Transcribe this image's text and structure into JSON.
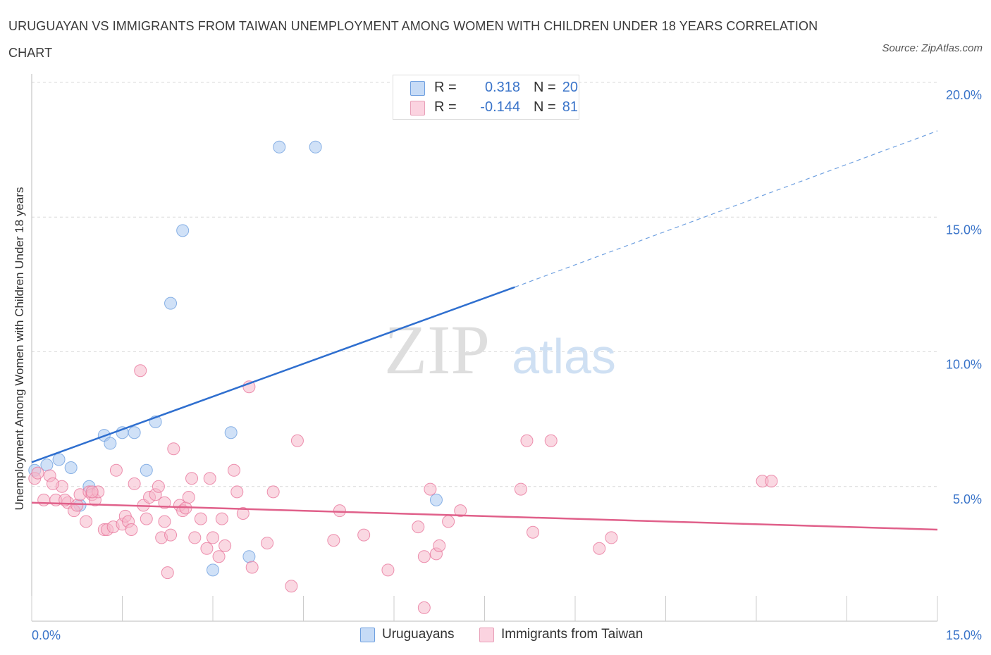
{
  "title": "URUGUAYAN VS IMMIGRANTS FROM TAIWAN UNEMPLOYMENT AMONG WOMEN WITH CHILDREN UNDER 18 YEARS CORRELATION CHART",
  "source": "Source: ZipAtlas.com",
  "watermark": {
    "zip": "ZIP",
    "atlas": "atlas"
  },
  "legend_top": [
    {
      "r_label": "R =",
      "r_value": "0.318",
      "n_label": "N =",
      "n_value": "20",
      "color": "#a9c8f0"
    },
    {
      "r_label": "R =",
      "r_value": "-0.144",
      "n_label": "N =",
      "n_value": "81",
      "color": "#f5b8cb"
    }
  ],
  "legend_bottom": [
    {
      "label": "Uruguayans",
      "color": "#a9c8f0"
    },
    {
      "label": "Immigrants from Taiwan",
      "color": "#f5b8cb"
    }
  ],
  "chart_data": {
    "type": "scatter",
    "title": "URUGUAYAN VS IMMIGRANTS FROM TAIWAN UNEMPLOYMENT AMONG WOMEN WITH CHILDREN UNDER 18 YEARS CORRELATION CHART",
    "xlabel": "",
    "ylabel": "Unemployment Among Women with Children Under 18 years",
    "xlim": [
      0,
      15
    ],
    "ylim": [
      0,
      20
    ],
    "x_tick_labels": [
      "0.0%",
      "15.0%"
    ],
    "y_tick_labels": [
      "5.0%",
      "10.0%",
      "15.0%",
      "20.0%"
    ],
    "y_ticks": [
      5,
      10,
      15,
      20
    ],
    "grid": true,
    "legend_position": "top-center and bottom",
    "series": [
      {
        "name": "Uruguayans",
        "color": "#6fa0e0",
        "fill": "#a9c8f0",
        "points": [
          [
            0.05,
            5.6
          ],
          [
            0.25,
            5.8
          ],
          [
            0.45,
            6.0
          ],
          [
            0.65,
            5.7
          ],
          [
            0.95,
            5.0
          ],
          [
            0.8,
            4.3
          ],
          [
            1.2,
            6.9
          ],
          [
            1.3,
            6.6
          ],
          [
            1.5,
            7.0
          ],
          [
            1.7,
            7.0
          ],
          [
            1.9,
            5.6
          ],
          [
            2.05,
            7.4
          ],
          [
            2.3,
            11.8
          ],
          [
            2.5,
            14.5
          ],
          [
            3.0,
            1.9
          ],
          [
            3.3,
            7.0
          ],
          [
            3.6,
            2.4
          ],
          [
            4.1,
            17.6
          ],
          [
            4.7,
            17.6
          ],
          [
            6.7,
            4.5
          ]
        ],
        "trend": {
          "x0": 0,
          "y0": 5.9,
          "x1": 8.0,
          "y1": 12.4,
          "dashed_to_x": 15,
          "dashed_to_y": 18.2
        }
      },
      {
        "name": "Immigrants from Taiwan",
        "color": "#e8779c",
        "fill": "#f5b8cb",
        "points": [
          [
            0.05,
            5.3
          ],
          [
            0.1,
            5.5
          ],
          [
            0.2,
            4.5
          ],
          [
            0.3,
            5.4
          ],
          [
            0.4,
            4.5
          ],
          [
            0.5,
            5.0
          ],
          [
            0.6,
            4.4
          ],
          [
            0.7,
            4.1
          ],
          [
            0.75,
            4.3
          ],
          [
            0.8,
            4.7
          ],
          [
            0.9,
            3.7
          ],
          [
            0.95,
            4.8
          ],
          [
            1.0,
            4.7
          ],
          [
            1.05,
            4.5
          ],
          [
            1.1,
            4.8
          ],
          [
            1.2,
            3.4
          ],
          [
            1.25,
            3.4
          ],
          [
            1.35,
            3.5
          ],
          [
            1.4,
            5.6
          ],
          [
            1.5,
            3.6
          ],
          [
            1.55,
            3.9
          ],
          [
            1.6,
            3.7
          ],
          [
            1.65,
            3.4
          ],
          [
            1.7,
            5.1
          ],
          [
            1.8,
            9.3
          ],
          [
            1.85,
            4.3
          ],
          [
            1.9,
            3.8
          ],
          [
            1.95,
            4.6
          ],
          [
            2.05,
            4.7
          ],
          [
            2.1,
            5.0
          ],
          [
            2.15,
            3.1
          ],
          [
            2.2,
            3.7
          ],
          [
            2.25,
            1.8
          ],
          [
            2.3,
            3.2
          ],
          [
            2.35,
            6.4
          ],
          [
            2.45,
            4.3
          ],
          [
            2.5,
            4.1
          ],
          [
            2.55,
            4.2
          ],
          [
            2.6,
            4.6
          ],
          [
            2.65,
            5.3
          ],
          [
            2.7,
            3.1
          ],
          [
            2.8,
            3.8
          ],
          [
            2.9,
            2.7
          ],
          [
            2.95,
            5.3
          ],
          [
            3.0,
            3.1
          ],
          [
            3.1,
            2.4
          ],
          [
            3.15,
            3.8
          ],
          [
            3.2,
            2.8
          ],
          [
            3.35,
            5.6
          ],
          [
            3.4,
            4.8
          ],
          [
            3.5,
            4.0
          ],
          [
            3.6,
            8.7
          ],
          [
            3.65,
            2.0
          ],
          [
            3.9,
            2.9
          ],
          [
            4.0,
            4.8
          ],
          [
            4.3,
            1.3
          ],
          [
            4.4,
            6.7
          ],
          [
            5.0,
            3.0
          ],
          [
            5.1,
            4.1
          ],
          [
            5.5,
            3.2
          ],
          [
            5.9,
            1.9
          ],
          [
            6.4,
            3.5
          ],
          [
            6.5,
            2.4
          ],
          [
            6.6,
            4.9
          ],
          [
            6.7,
            2.5
          ],
          [
            6.75,
            2.8
          ],
          [
            6.9,
            3.7
          ],
          [
            7.1,
            4.1
          ],
          [
            8.1,
            4.9
          ],
          [
            8.2,
            6.7
          ],
          [
            8.3,
            3.3
          ],
          [
            8.6,
            6.7
          ],
          [
            9.4,
            2.7
          ],
          [
            9.6,
            3.1
          ],
          [
            12.1,
            5.2
          ],
          [
            12.25,
            5.2
          ],
          [
            6.5,
            0.5
          ],
          [
            2.2,
            4.4
          ],
          [
            1.0,
            4.8
          ],
          [
            0.35,
            5.1
          ],
          [
            0.55,
            4.5
          ]
        ],
        "trend": {
          "x0": 0,
          "y0": 4.4,
          "x1": 15,
          "y1": 3.4
        }
      }
    ]
  }
}
